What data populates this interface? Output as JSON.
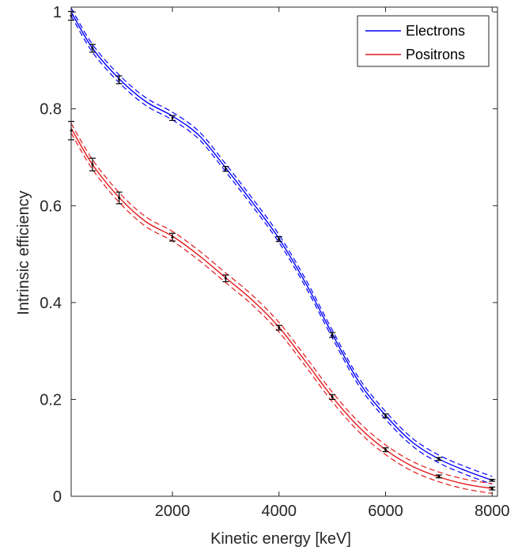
{
  "chart_data": {
    "type": "line",
    "xlabel": "Kinetic energy [keV]",
    "ylabel": "Intrinsic efficiency",
    "xlim": [
      100,
      8100
    ],
    "ylim": [
      0,
      1.01
    ],
    "x_ticks": [
      2000,
      4000,
      6000,
      8000
    ],
    "y_ticks": [
      0,
      0.2,
      0.4,
      0.6,
      0.8,
      1
    ],
    "x_tick_labels": [
      "2000",
      "4000",
      "6000",
      "8000"
    ],
    "y_tick_labels": [
      "0",
      "0.2",
      "0.4",
      "0.6",
      "0.8",
      "1"
    ],
    "grid": false,
    "legend_position": "top-right",
    "series": [
      {
        "name": "Electrons",
        "color": "#0000ff",
        "fit": [
          [
            100,
            1.0
          ],
          [
            500,
            0.925
          ],
          [
            1000,
            0.862
          ],
          [
            1500,
            0.815
          ],
          [
            2000,
            0.785
          ],
          [
            2500,
            0.745
          ],
          [
            3000,
            0.678
          ],
          [
            3500,
            0.607
          ],
          [
            4000,
            0.532
          ],
          [
            4500,
            0.44
          ],
          [
            5000,
            0.335
          ],
          [
            5500,
            0.236
          ],
          [
            6000,
            0.167
          ],
          [
            6500,
            0.112
          ],
          [
            7000,
            0.077
          ],
          [
            7500,
            0.053
          ],
          [
            8000,
            0.033
          ]
        ],
        "band": 0.008,
        "points": [
          {
            "x": 100,
            "y": 0.992,
            "err": 0.009
          },
          {
            "x": 500,
            "y": 0.925,
            "err": 0.008
          },
          {
            "x": 1000,
            "y": 0.86,
            "err": 0.008
          },
          {
            "x": 2000,
            "y": 0.781,
            "err": 0.005
          },
          {
            "x": 3000,
            "y": 0.676,
            "err": 0.005
          },
          {
            "x": 4000,
            "y": 0.531,
            "err": 0.005
          },
          {
            "x": 5000,
            "y": 0.333,
            "err": 0.005
          },
          {
            "x": 6000,
            "y": 0.166,
            "err": 0.004
          },
          {
            "x": 7000,
            "y": 0.077,
            "err": 0.003
          },
          {
            "x": 8000,
            "y": 0.033,
            "err": 0.002
          }
        ]
      },
      {
        "name": "Positrons",
        "color": "#e41a1c",
        "fit": [
          [
            100,
            0.76
          ],
          [
            500,
            0.685
          ],
          [
            1000,
            0.617
          ],
          [
            1500,
            0.567
          ],
          [
            2000,
            0.537
          ],
          [
            2500,
            0.497
          ],
          [
            3000,
            0.451
          ],
          [
            3500,
            0.405
          ],
          [
            4000,
            0.349
          ],
          [
            4500,
            0.278
          ],
          [
            5000,
            0.205
          ],
          [
            5500,
            0.143
          ],
          [
            6000,
            0.096
          ],
          [
            6500,
            0.062
          ],
          [
            7000,
            0.04
          ],
          [
            7500,
            0.025
          ],
          [
            8000,
            0.016
          ]
        ],
        "band": 0.01,
        "points": [
          {
            "x": 100,
            "y": 0.755,
            "err": 0.019
          },
          {
            "x": 500,
            "y": 0.685,
            "err": 0.013
          },
          {
            "x": 1000,
            "y": 0.616,
            "err": 0.012
          },
          {
            "x": 2000,
            "y": 0.535,
            "err": 0.008
          },
          {
            "x": 3000,
            "y": 0.45,
            "err": 0.007
          },
          {
            "x": 4000,
            "y": 0.348,
            "err": 0.005
          },
          {
            "x": 5000,
            "y": 0.205,
            "err": 0.005
          },
          {
            "x": 6000,
            "y": 0.096,
            "err": 0.004
          },
          {
            "x": 7000,
            "y": 0.041,
            "err": 0.003
          },
          {
            "x": 8000,
            "y": 0.016,
            "err": 0.003
          }
        ]
      }
    ]
  }
}
